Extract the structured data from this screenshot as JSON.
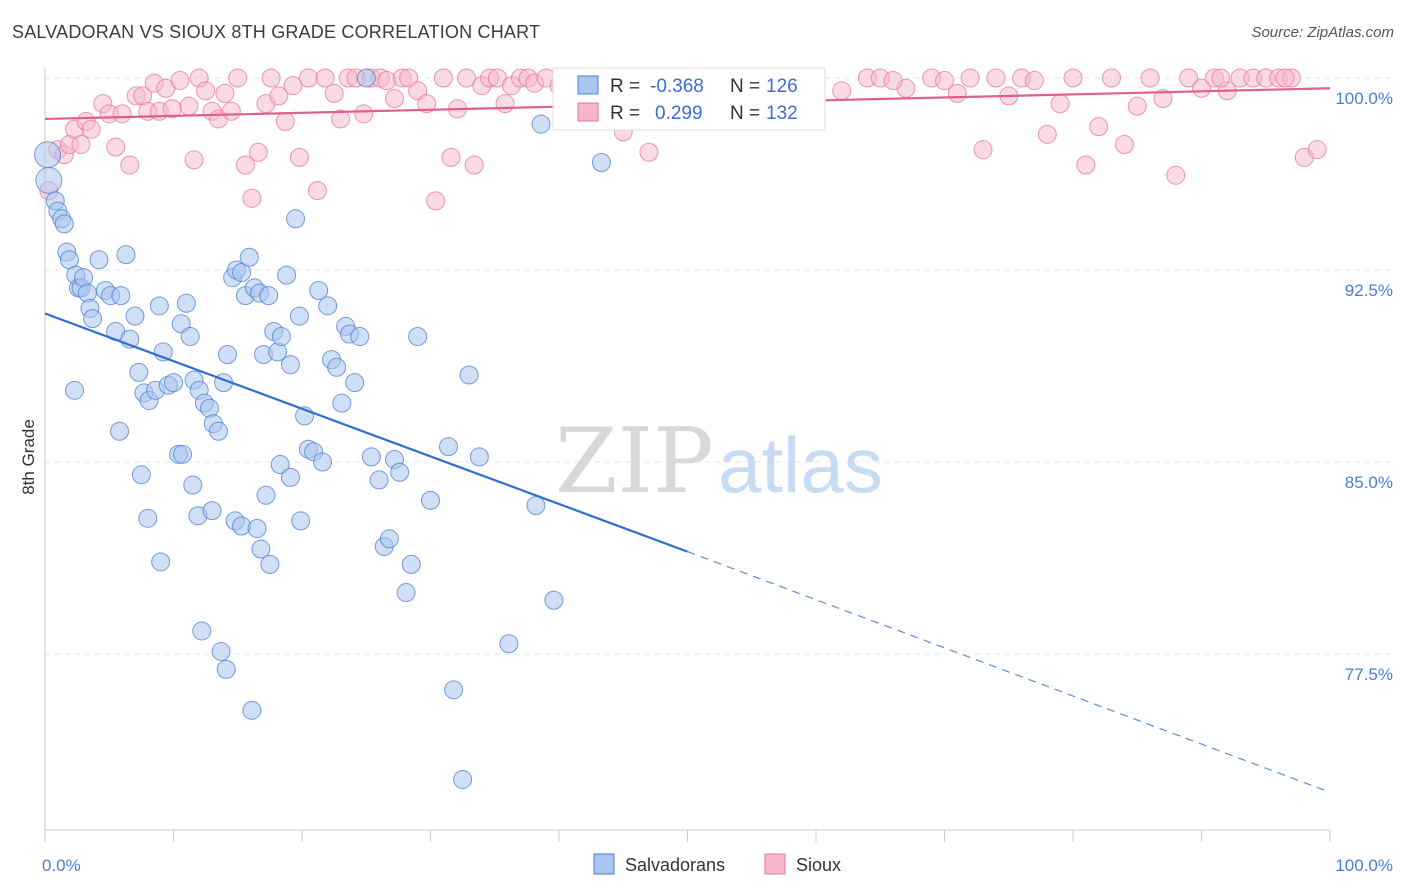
{
  "title": "SALVADORAN VS SIOUX 8TH GRADE CORRELATION CHART",
  "source": "Source: ZipAtlas.com",
  "watermark": {
    "zip": "ZIP",
    "atlas": "atlas"
  },
  "chart_data": {
    "type": "scatter",
    "ylabel": "8th Grade",
    "xlim": [
      0,
      100
    ],
    "ylim": [
      72.5,
      101
    ],
    "x_tick_labels": [
      "0.0%",
      "100.0%"
    ],
    "y_ticks": [
      100.0,
      92.5,
      85.0,
      77.5
    ],
    "y_tick_labels": [
      "100.0%",
      "92.5%",
      "85.0%",
      "77.5%"
    ],
    "grid": true,
    "legend": {
      "placement": "top-center",
      "rows": [
        {
          "r_label": "R =",
          "r_value": "-0.368",
          "n_label": "N =",
          "n_value": "126"
        },
        {
          "r_label": "R =",
          "r_value": "0.299",
          "n_label": "N =",
          "n_value": "132"
        }
      ]
    },
    "series": [
      {
        "name": "Salvadorans",
        "color": "#4a7fd0",
        "fill": "#a9c4ee",
        "trend": {
          "x0": 0,
          "y0": 90.8,
          "x1": 50,
          "y1": 81.5,
          "dash_to_x": 100,
          "dash_to_y": 72.1
        },
        "points": [
          [
            0.2,
            97
          ],
          [
            0.3,
            96
          ],
          [
            0.8,
            95.2
          ],
          [
            1.0,
            94.8
          ],
          [
            1.3,
            94.5
          ],
          [
            1.5,
            94.3
          ],
          [
            1.7,
            93.2
          ],
          [
            1.9,
            92.9
          ],
          [
            2.4,
            92.3
          ],
          [
            2.6,
            91.8
          ],
          [
            2.8,
            91.8
          ],
          [
            3.0,
            92.2
          ],
          [
            3.3,
            91.6
          ],
          [
            3.5,
            91.0
          ],
          [
            3.7,
            90.6
          ],
          [
            4.2,
            92.9
          ],
          [
            4.7,
            91.7
          ],
          [
            5.1,
            91.5
          ],
          [
            5.5,
            90.1
          ],
          [
            5.9,
            91.5
          ],
          [
            6.3,
            93.1
          ],
          [
            6.6,
            89.8
          ],
          [
            7.0,
            90.7
          ],
          [
            7.3,
            88.5
          ],
          [
            7.7,
            87.7
          ],
          [
            8.1,
            87.4
          ],
          [
            8.6,
            87.8
          ],
          [
            8.9,
            91.1
          ],
          [
            9.2,
            89.3
          ],
          [
            9.6,
            88.0
          ],
          [
            10.0,
            88.1
          ],
          [
            10.4,
            85.3
          ],
          [
            10.6,
            90.4
          ],
          [
            11.0,
            91.2
          ],
          [
            11.3,
            89.9
          ],
          [
            11.6,
            88.2
          ],
          [
            12.0,
            87.8
          ],
          [
            12.4,
            87.3
          ],
          [
            12.8,
            87.1
          ],
          [
            13.1,
            86.5
          ],
          [
            13.5,
            86.2
          ],
          [
            13.9,
            88.1
          ],
          [
            14.2,
            89.2
          ],
          [
            14.6,
            92.2
          ],
          [
            14.9,
            92.5
          ],
          [
            15.3,
            92.4
          ],
          [
            15.6,
            91.5
          ],
          [
            15.9,
            93.0
          ],
          [
            16.3,
            91.8
          ],
          [
            16.7,
            91.6
          ],
          [
            17.0,
            89.2
          ],
          [
            17.4,
            91.5
          ],
          [
            17.8,
            90.1
          ],
          [
            18.1,
            89.3
          ],
          [
            18.4,
            89.9
          ],
          [
            18.8,
            92.3
          ],
          [
            19.1,
            88.8
          ],
          [
            19.5,
            94.5
          ],
          [
            19.8,
            90.7
          ],
          [
            20.2,
            86.8
          ],
          [
            20.5,
            85.5
          ],
          [
            20.9,
            85.4
          ],
          [
            21.3,
            91.7
          ],
          [
            21.6,
            85.0
          ],
          [
            22.0,
            91.1
          ],
          [
            22.3,
            89.0
          ],
          [
            22.7,
            88.7
          ],
          [
            23.1,
            87.3
          ],
          [
            23.4,
            90.3
          ],
          [
            23.7,
            90.0
          ],
          [
            24.1,
            88.1
          ],
          [
            24.5,
            89.9
          ],
          [
            25.0,
            100
          ],
          [
            25.4,
            85.2
          ],
          [
            26.0,
            84.3
          ],
          [
            26.4,
            81.7
          ],
          [
            26.8,
            82.0
          ],
          [
            27.2,
            85.1
          ],
          [
            27.6,
            84.6
          ],
          [
            28.1,
            79.9
          ],
          [
            28.5,
            81.0
          ],
          [
            29.0,
            89.9
          ],
          [
            2.3,
            87.8
          ],
          [
            5.8,
            86.2
          ],
          [
            7.5,
            84.5
          ],
          [
            8.0,
            82.8
          ],
          [
            9.0,
            81.1
          ],
          [
            10.7,
            85.3
          ],
          [
            11.5,
            84.1
          ],
          [
            11.9,
            82.9
          ],
          [
            12.2,
            78.4
          ],
          [
            13.0,
            83.1
          ],
          [
            13.7,
            77.6
          ],
          [
            14.1,
            76.9
          ],
          [
            14.8,
            82.7
          ],
          [
            15.3,
            82.5
          ],
          [
            16.1,
            75.3
          ],
          [
            16.5,
            82.4
          ],
          [
            16.8,
            81.6
          ],
          [
            17.2,
            83.7
          ],
          [
            17.5,
            81.0
          ],
          [
            18.3,
            84.9
          ],
          [
            19.1,
            84.4
          ],
          [
            19.9,
            82.7
          ],
          [
            30.0,
            83.5
          ],
          [
            31.4,
            85.6
          ],
          [
            31.8,
            76.1
          ],
          [
            32.5,
            72.6
          ],
          [
            33.0,
            88.4
          ],
          [
            33.8,
            85.2
          ],
          [
            36.1,
            77.9
          ],
          [
            38.2,
            83.3
          ],
          [
            38.6,
            98.2
          ],
          [
            39.6,
            79.6
          ],
          [
            43.3,
            96.7
          ]
        ]
      },
      {
        "name": "Sioux",
        "color": "#e8769a",
        "fill": "#f6b7cb",
        "trend": {
          "x0": 0,
          "y0": 98.4,
          "x1": 100,
          "y1": 99.6
        },
        "points": [
          [
            0.3,
            95.6
          ],
          [
            1.0,
            97.2
          ],
          [
            1.5,
            97.0
          ],
          [
            1.9,
            97.4
          ],
          [
            2.3,
            98.0
          ],
          [
            2.8,
            97.4
          ],
          [
            3.2,
            98.3
          ],
          [
            3.6,
            98.0
          ],
          [
            4.5,
            99.0
          ],
          [
            5.0,
            98.6
          ],
          [
            5.5,
            97.3
          ],
          [
            6.0,
            98.6
          ],
          [
            6.6,
            96.6
          ],
          [
            7.1,
            99.3
          ],
          [
            7.6,
            99.3
          ],
          [
            8.0,
            98.7
          ],
          [
            8.5,
            99.8
          ],
          [
            8.9,
            98.7
          ],
          [
            9.4,
            99.6
          ],
          [
            9.9,
            98.8
          ],
          [
            10.5,
            99.9
          ],
          [
            11.2,
            98.9
          ],
          [
            11.6,
            96.8
          ],
          [
            12.0,
            100
          ],
          [
            12.5,
            99.5
          ],
          [
            13.0,
            98.7
          ],
          [
            13.5,
            98.4
          ],
          [
            14.0,
            99.4
          ],
          [
            14.5,
            98.7
          ],
          [
            15.0,
            100
          ],
          [
            15.6,
            96.6
          ],
          [
            16.1,
            95.3
          ],
          [
            16.6,
            97.1
          ],
          [
            17.2,
            99.0
          ],
          [
            17.6,
            100
          ],
          [
            18.2,
            99.3
          ],
          [
            18.7,
            98.3
          ],
          [
            19.3,
            99.7
          ],
          [
            19.8,
            96.9
          ],
          [
            20.5,
            100
          ],
          [
            21.2,
            95.6
          ],
          [
            21.8,
            100
          ],
          [
            22.5,
            99.4
          ],
          [
            23.0,
            98.4
          ],
          [
            23.6,
            100
          ],
          [
            24.2,
            100
          ],
          [
            24.8,
            98.6
          ],
          [
            25.4,
            100
          ],
          [
            26.1,
            100
          ],
          [
            26.6,
            99.9
          ],
          [
            27.2,
            99.2
          ],
          [
            27.8,
            100
          ],
          [
            28.3,
            100
          ],
          [
            29.0,
            99.5
          ],
          [
            29.7,
            99.0
          ],
          [
            30.4,
            95.2
          ],
          [
            31.0,
            100
          ],
          [
            31.6,
            96.9
          ],
          [
            32.1,
            98.8
          ],
          [
            32.8,
            100
          ],
          [
            33.4,
            96.6
          ],
          [
            34.0,
            99.7
          ],
          [
            34.6,
            100
          ],
          [
            35.2,
            100
          ],
          [
            35.8,
            99.0
          ],
          [
            36.3,
            99.7
          ],
          [
            37.0,
            100
          ],
          [
            37.6,
            100
          ],
          [
            38.1,
            99.8
          ],
          [
            39.0,
            100
          ],
          [
            40.0,
            99.7
          ],
          [
            41.0,
            99.1
          ],
          [
            42.0,
            100
          ],
          [
            43.0,
            99.4
          ],
          [
            44.0,
            100
          ],
          [
            45.0,
            97.9
          ],
          [
            46.0,
            100
          ],
          [
            47.0,
            97.1
          ],
          [
            48.0,
            100
          ],
          [
            49.0,
            100
          ],
          [
            50.0,
            100
          ],
          [
            51.0,
            99.1
          ],
          [
            52.0,
            100
          ],
          [
            53.0,
            99.6
          ],
          [
            55.0,
            100
          ],
          [
            57.0,
            99.8
          ],
          [
            59.0,
            100
          ],
          [
            60.0,
            100
          ],
          [
            62.0,
            99.5
          ],
          [
            64.0,
            100
          ],
          [
            65.0,
            100
          ],
          [
            67.0,
            99.6
          ],
          [
            69.0,
            100
          ],
          [
            71.0,
            99.4
          ],
          [
            72.0,
            100
          ],
          [
            73.0,
            97.2
          ],
          [
            75.0,
            99.3
          ],
          [
            76.0,
            100
          ],
          [
            78.0,
            97.8
          ],
          [
            79.0,
            99.0
          ],
          [
            80.0,
            100
          ],
          [
            81.0,
            96.6
          ],
          [
            82.0,
            98.1
          ],
          [
            83.0,
            100
          ],
          [
            84.0,
            97.4
          ],
          [
            85.0,
            98.9
          ],
          [
            86.0,
            100
          ],
          [
            87.0,
            99.2
          ],
          [
            88.0,
            96.2
          ],
          [
            89.0,
            100
          ],
          [
            90.0,
            99.6
          ],
          [
            91.0,
            100
          ],
          [
            92.0,
            99.5
          ],
          [
            93.0,
            100
          ],
          [
            94.0,
            100
          ],
          [
            95.0,
            100
          ],
          [
            96.0,
            100
          ],
          [
            97.0,
            100
          ],
          [
            98.0,
            96.9
          ],
          [
            99.0,
            97.2
          ],
          [
            66.0,
            99.9
          ],
          [
            70.0,
            99.9
          ],
          [
            74.0,
            100
          ],
          [
            77.0,
            99.9
          ],
          [
            91.5,
            100
          ],
          [
            96.5,
            100
          ]
        ]
      }
    ]
  }
}
